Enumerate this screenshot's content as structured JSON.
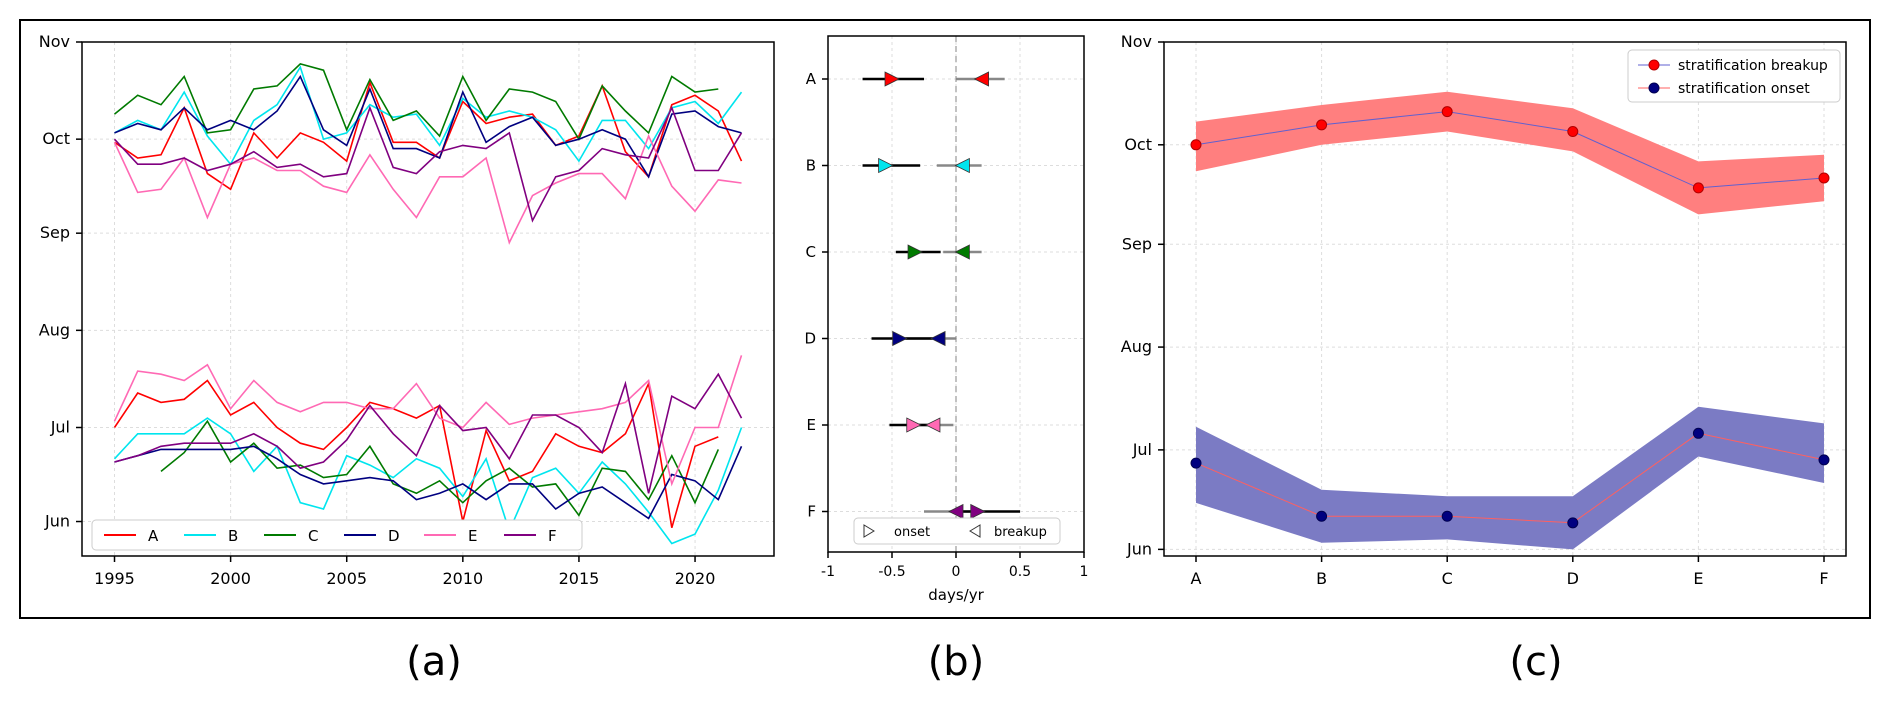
{
  "colors": {
    "A": "#ff0000",
    "B": "#00e5ee",
    "C": "#007a00",
    "D": "#000080",
    "E": "#ff69b4",
    "F": "#800080",
    "red_band": "#ff7f7f",
    "blue_band": "#7b7bc4",
    "breakup_line": "#6060d0",
    "onset_line": "#ff6060",
    "grid": "#dddddd"
  },
  "chart_data": [
    {
      "id": "a",
      "type": "line",
      "panel_label": "(a)",
      "xlim": [
        1993.6,
        2023.4
      ],
      "xticks": [
        1995,
        2000,
        2005,
        2010,
        2015,
        2020
      ],
      "yticks": [
        "Jun",
        "Jul",
        "Aug",
        "Sep",
        "Oct",
        "Nov"
      ],
      "ylim_doy": [
        141,
        305
      ],
      "grid": true,
      "legend": {
        "placement": "bottom-left",
        "entries": [
          "A",
          "B",
          "C",
          "D",
          "E",
          "F"
        ]
      },
      "series": [
        {
          "name": "A",
          "segment": "onset",
          "start_year": 1995,
          "values": [
            182,
            193,
            190,
            191,
            197,
            186,
            190,
            182,
            177,
            175,
            182,
            190,
            188,
            185,
            189,
            152,
            181,
            165,
            168,
            180,
            176,
            174,
            180,
            196,
            150,
            176,
            179
          ]
        },
        {
          "name": "A",
          "segment": "breakup",
          "start_year": 1995,
          "values": [
            273,
            268,
            269,
            284,
            263,
            258,
            276,
            268,
            276,
            273,
            267,
            292,
            273,
            273,
            268,
            286,
            279,
            281,
            282,
            272,
            275,
            291,
            270,
            262,
            285,
            288,
            283,
            267
          ]
        },
        {
          "name": "B",
          "segment": "onset",
          "start_year": 1995,
          "values": [
            172,
            180,
            180,
            180,
            185,
            180,
            168,
            176,
            158,
            156,
            173,
            170,
            166,
            172,
            169,
            160,
            172,
            149,
            166,
            169,
            161,
            171,
            164,
            155,
            145,
            148,
            162,
            182
          ]
        },
        {
          "name": "B",
          "segment": "breakup",
          "start_year": 1995,
          "values": [
            276,
            280,
            277,
            289,
            275,
            266,
            280,
            285,
            297,
            274,
            276,
            285,
            281,
            282,
            272,
            287,
            281,
            283,
            281,
            277,
            267,
            280,
            280,
            271,
            284,
            286,
            279,
            289
          ]
        },
        {
          "name": "C",
          "segment": "onset",
          "start_year": 1997,
          "values": [
            168,
            174,
            184,
            171,
            177,
            169,
            170,
            166,
            167,
            176,
            164,
            161,
            165,
            158,
            165,
            169,
            163,
            164,
            154,
            169,
            168,
            159,
            173,
            158,
            175
          ]
        },
        {
          "name": "C",
          "segment": "breakup",
          "start_year": 1995,
          "values": [
            282,
            288,
            285,
            294,
            276,
            277,
            290,
            291,
            298,
            296,
            277,
            293,
            280,
            283,
            275,
            294,
            280,
            290,
            289,
            286,
            274,
            291,
            283,
            276,
            294,
            289,
            290
          ]
        },
        {
          "name": "D",
          "segment": "onset",
          "start_year": 1995,
          "values": [
            171,
            173,
            175,
            175,
            175,
            175,
            176,
            172,
            167,
            164,
            165,
            166,
            165,
            159,
            161,
            164,
            159,
            164,
            164,
            156,
            161,
            163,
            158,
            153,
            167,
            165,
            159,
            176
          ]
        },
        {
          "name": "D",
          "segment": "breakup",
          "start_year": 1995,
          "values": [
            276,
            279,
            277,
            284,
            277,
            280,
            277,
            283,
            294,
            277,
            272,
            290,
            271,
            271,
            268,
            289,
            273,
            278,
            281,
            272,
            274,
            277,
            274,
            262,
            282,
            283,
            278,
            276
          ]
        },
        {
          "name": "E",
          "segment": "onset",
          "start_year": 1995,
          "values": [
            184,
            200,
            199,
            197,
            202,
            188,
            197,
            190,
            187,
            190,
            190,
            188,
            188,
            196,
            185,
            182,
            190,
            183,
            185,
            186,
            187,
            188,
            190,
            197,
            164,
            182,
            182,
            205
          ]
        },
        {
          "name": "E",
          "segment": "breakup",
          "start_year": 1995,
          "values": [
            273,
            257,
            258,
            268,
            249,
            266,
            268,
            264,
            264,
            259,
            257,
            269,
            258,
            249,
            262,
            262,
            268,
            241,
            256,
            260,
            263,
            263,
            255,
            275,
            259,
            251,
            261,
            260
          ]
        },
        {
          "name": "F",
          "segment": "onset",
          "start_year": 1995,
          "values": [
            171,
            173,
            176,
            177,
            177,
            177,
            180,
            176,
            169,
            171,
            178,
            189,
            180,
            173,
            189,
            181,
            182,
            172,
            186,
            186,
            182,
            174,
            196,
            161,
            192,
            188,
            199,
            185
          ]
        },
        {
          "name": "F",
          "segment": "breakup",
          "start_year": 1995,
          "values": [
            274,
            266,
            266,
            268,
            264,
            266,
            270,
            265,
            266,
            262,
            263,
            284,
            265,
            263,
            270,
            272,
            271,
            276,
            248,
            262,
            264,
            271,
            269,
            268,
            284,
            264,
            264,
            276
          ]
        }
      ]
    },
    {
      "id": "b",
      "type": "scatter",
      "panel_label": "(b)",
      "xlabel": "days/yr",
      "xlim": [
        -1,
        1
      ],
      "xticks": [
        "-1",
        "-0.5",
        "0",
        "0.5",
        "1"
      ],
      "categories": [
        "A",
        "B",
        "C",
        "D",
        "E",
        "F"
      ],
      "grid": true,
      "legend": {
        "placement": "bottom-right",
        "entries": [
          "onset",
          "breakup"
        ]
      },
      "series": [
        {
          "name": "onset",
          "marker": "right-triangle",
          "values": [
            -0.5,
            -0.55,
            -0.32,
            -0.44,
            -0.33,
            0.17
          ],
          "ci_low": [
            -0.73,
            -0.73,
            -0.47,
            -0.66,
            -0.52,
            -0.03
          ],
          "ci_high": [
            -0.25,
            -0.28,
            -0.12,
            -0.1,
            -0.2,
            0.5
          ]
        },
        {
          "name": "breakup",
          "marker": "left-triangle",
          "values": [
            0.2,
            0.05,
            0.05,
            -0.14,
            -0.18,
            0.0
          ],
          "ci_low": [
            0.0,
            -0.15,
            -0.1,
            -0.4,
            -0.35,
            -0.25
          ],
          "ci_high": [
            0.38,
            0.2,
            0.2,
            0.0,
            -0.02,
            0.2
          ]
        }
      ]
    },
    {
      "id": "c",
      "type": "line",
      "panel_label": "(c)",
      "categories": [
        "A",
        "B",
        "C",
        "D",
        "E",
        "F"
      ],
      "yticks": [
        "Jun",
        "Jul",
        "Aug",
        "Sep",
        "Oct",
        "Nov"
      ],
      "ylim_doy": [
        150,
        305
      ],
      "grid": true,
      "legend": {
        "placement": "top-right",
        "entries": [
          "stratification breakup",
          "stratification onset"
        ]
      },
      "series": [
        {
          "name": "stratification breakup",
          "values": [
            274,
            280,
            284,
            278,
            261,
            264
          ],
          "band_low": [
            266,
            274,
            278,
            272,
            253,
            257
          ],
          "band_high": [
            281,
            286,
            290,
            285,
            269,
            271
          ]
        },
        {
          "name": "stratification onset",
          "values": [
            178,
            162,
            162,
            160,
            187,
            179
          ],
          "band_low": [
            166,
            154,
            155,
            152,
            180,
            172
          ],
          "band_high": [
            189,
            170,
            168,
            168,
            195,
            190
          ]
        }
      ]
    }
  ]
}
